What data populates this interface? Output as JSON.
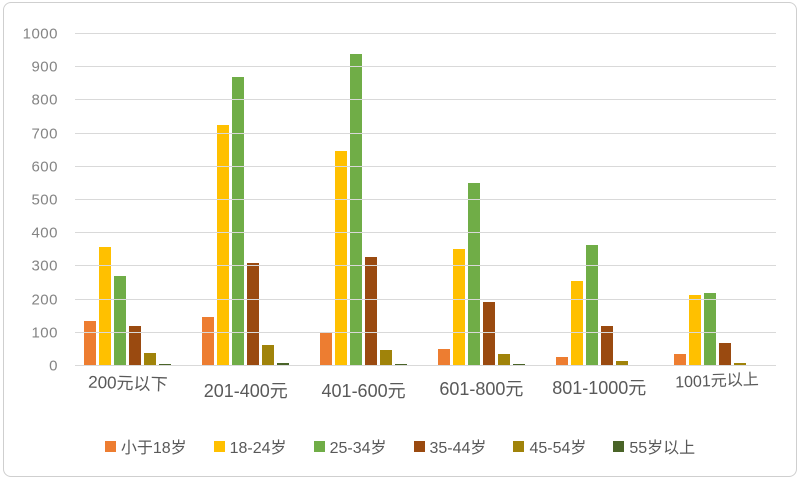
{
  "chart_data": {
    "type": "bar",
    "title": "",
    "categories": [
      "200元以下",
      "201-400元",
      "401-600元",
      "601-800元",
      "801-1000元",
      "1001元以上"
    ],
    "series": [
      {
        "name": "小于18岁",
        "color": "#ED7D31",
        "values": [
          135,
          148,
          98,
          50,
          28,
          37
        ]
      },
      {
        "name": "18-24岁",
        "color": "#FFC000",
        "values": [
          357,
          727,
          648,
          353,
          255,
          213
        ]
      },
      {
        "name": "25-34岁",
        "color": "#70AD47",
        "values": [
          271,
          872,
          940,
          551,
          363,
          221
        ]
      },
      {
        "name": "35-44岁",
        "color": "#9A4A10",
        "values": [
          120,
          311,
          327,
          193,
          122,
          70
        ]
      },
      {
        "name": "45-54岁",
        "color": "#A0830A",
        "values": [
          38,
          63,
          48,
          35,
          15,
          9
        ]
      },
      {
        "name": "55岁以上",
        "color": "#4A6428",
        "values": [
          7,
          10,
          6,
          5,
          4,
          3
        ]
      }
    ],
    "ylim": [
      0,
      1000
    ],
    "ytick_step": 100,
    "ytick_labels": [
      "0",
      "100",
      "200",
      "300",
      "400",
      "500",
      "600",
      "700",
      "800",
      "900",
      "1000"
    ],
    "grid": true,
    "legend_position": "bottom",
    "colors": {
      "gridline": "#D9D9D9",
      "y_axis_text": "#848484",
      "x_axis_text": "#595959",
      "legend_text": "#595959",
      "background": "#FFFFFF",
      "card_border": "#CFCFCF"
    }
  }
}
